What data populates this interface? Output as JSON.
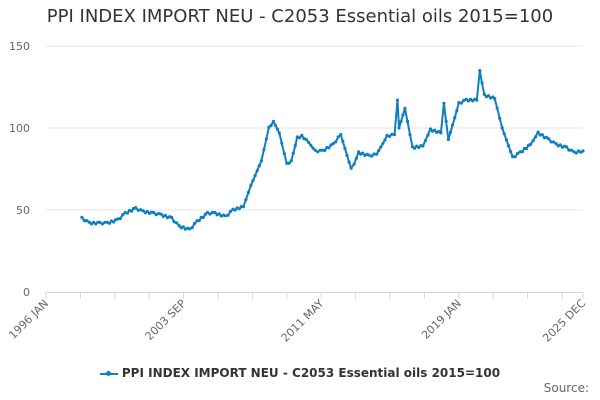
{
  "title": "PPI INDEX IMPORT NEU - C2053 Essential oils 2015=100",
  "legend": {
    "label": "PPI INDEX IMPORT NEU - C2053 Essential oils 2015=100",
    "color": "#0f7fc0"
  },
  "source": "Source:",
  "chart_data": {
    "type": "line",
    "title": "PPI INDEX IMPORT NEU - C2053 Essential oils 2015=100",
    "xlabel": "",
    "ylabel": "",
    "ylim": [
      0,
      150
    ],
    "yticks": [
      0,
      50,
      100,
      150
    ],
    "xtick_labels": [
      "1996 JAN",
      "2003 SEP",
      "2011 MAY",
      "2019 JAN",
      "2025 DEC"
    ],
    "grid": true,
    "legend_position": "bottom",
    "series": [
      {
        "name": "PPI INDEX IMPORT NEU - C2053 Essential oils 2015=100",
        "color": "#0f7fc0",
        "x": [
          "1998-01",
          "1998-06",
          "1999-01",
          "1999-06",
          "2000-01",
          "2000-06",
          "2001-01",
          "2001-06",
          "2002-01",
          "2002-06",
          "2003-01",
          "2003-06",
          "2004-01",
          "2004-06",
          "2005-01",
          "2005-06",
          "2006-01",
          "2006-06",
          "2007-01",
          "2007-06",
          "2008-01",
          "2008-06",
          "2008-09",
          "2009-01",
          "2009-06",
          "2009-09",
          "2010-01",
          "2010-04",
          "2010-07",
          "2011-01",
          "2011-06",
          "2012-01",
          "2012-06",
          "2013-01",
          "2013-03",
          "2013-06",
          "2014-01",
          "2014-06",
          "2015-01",
          "2015-06",
          "2015-08",
          "2015-09",
          "2016-01",
          "2016-06",
          "2017-01",
          "2017-06",
          "2018-01",
          "2018-03",
          "2018-06",
          "2019-01",
          "2019-06",
          "2020-01",
          "2020-03",
          "2020-06",
          "2021-01",
          "2021-06",
          "2022-01",
          "2022-06",
          "2023-01",
          "2023-06",
          "2024-01",
          "2024-06",
          "2025-01",
          "2025-06",
          "2025-12"
        ],
        "values": [
          45,
          42,
          42,
          42,
          44,
          48,
          51,
          49,
          48,
          47,
          45,
          40,
          38,
          43,
          48,
          48,
          46,
          50,
          52,
          65,
          80,
          100,
          104,
          97,
          78,
          80,
          94,
          95,
          93,
          86,
          86,
          90,
          96,
          75,
          78,
          85,
          83,
          84,
          95,
          96,
          117,
          100,
          112,
          88,
          89,
          99,
          97,
          115,
          93,
          115,
          117,
          117,
          135,
          120,
          118,
          100,
          82,
          85,
          90,
          97,
          93,
          90,
          88,
          85,
          86
        ]
      }
    ]
  }
}
